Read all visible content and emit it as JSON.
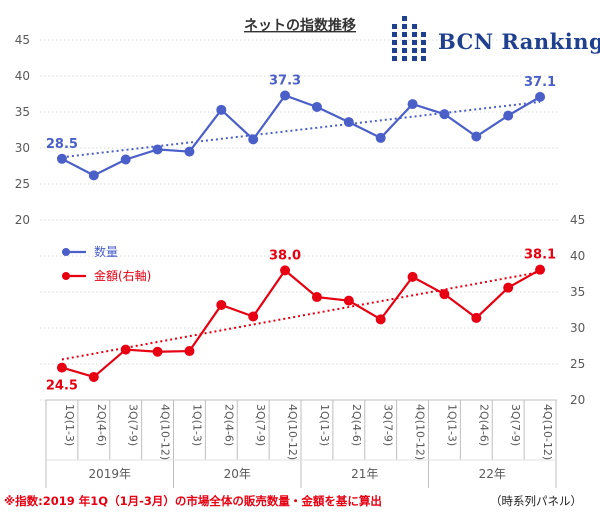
{
  "brand": {
    "name": "BCN Ranking",
    "color": "#1f3f8f"
  },
  "footnote": "※指数:2019 年1Q（1月-3月）の市場全体の販売数量・金額を基に算出",
  "panel_note": "（時系列パネル）",
  "chart_data": {
    "type": "line",
    "title": "ネットの指数推移",
    "categories": [
      "1Q(1-3)",
      "2Q(4-6)",
      "3Q(7-9)",
      "4Q(10-12)",
      "1Q(1-3)",
      "2Q(4-6)",
      "3Q(7-9)",
      "4Q(10-12)",
      "1Q(1-3)",
      "2Q(4-6)",
      "3Q(7-9)",
      "4Q(10-12)",
      "1Q(1-3)",
      "2Q(4-6)",
      "3Q(7-9)",
      "4Q(10-12)"
    ],
    "year_groups": [
      {
        "label": "2019年",
        "start": 0,
        "end": 3
      },
      {
        "label": "20年",
        "start": 4,
        "end": 7
      },
      {
        "label": "21年",
        "start": 8,
        "end": 11
      },
      {
        "label": "22年",
        "start": 12,
        "end": 15
      }
    ],
    "left_axis": {
      "range": [
        20,
        45
      ],
      "ticks": [
        20,
        25,
        30,
        35,
        40,
        45
      ]
    },
    "right_axis": {
      "range": [
        20,
        45
      ],
      "ticks": [
        20,
        25,
        30,
        35,
        40,
        45
      ]
    },
    "series": [
      {
        "name": "数量",
        "axis": "left",
        "color": "#4b5fc9",
        "values": [
          28.5,
          26.2,
          28.4,
          29.8,
          29.5,
          35.3,
          31.2,
          37.3,
          35.7,
          33.6,
          31.4,
          36.1,
          34.7,
          31.6,
          34.5,
          37.1
        ],
        "trendline": true,
        "labels": [
          {
            "index": 0,
            "text": "28.5"
          },
          {
            "index": 7,
            "text": "37.3"
          },
          {
            "index": 15,
            "text": "37.1"
          }
        ]
      },
      {
        "name": "金額(右軸)",
        "axis": "right",
        "color": "#e60012",
        "values": [
          24.5,
          23.2,
          27.0,
          26.7,
          26.8,
          33.2,
          31.6,
          38.0,
          34.3,
          33.8,
          31.2,
          37.1,
          34.7,
          31.4,
          35.6,
          38.1
        ],
        "trendline": true,
        "labels": [
          {
            "index": 0,
            "text": "24.5"
          },
          {
            "index": 7,
            "text": "38.0"
          },
          {
            "index": 15,
            "text": "38.1"
          }
        ]
      }
    ],
    "grid": true,
    "gridline_color": "#d9d9d9",
    "legend_position": "middle-left"
  }
}
